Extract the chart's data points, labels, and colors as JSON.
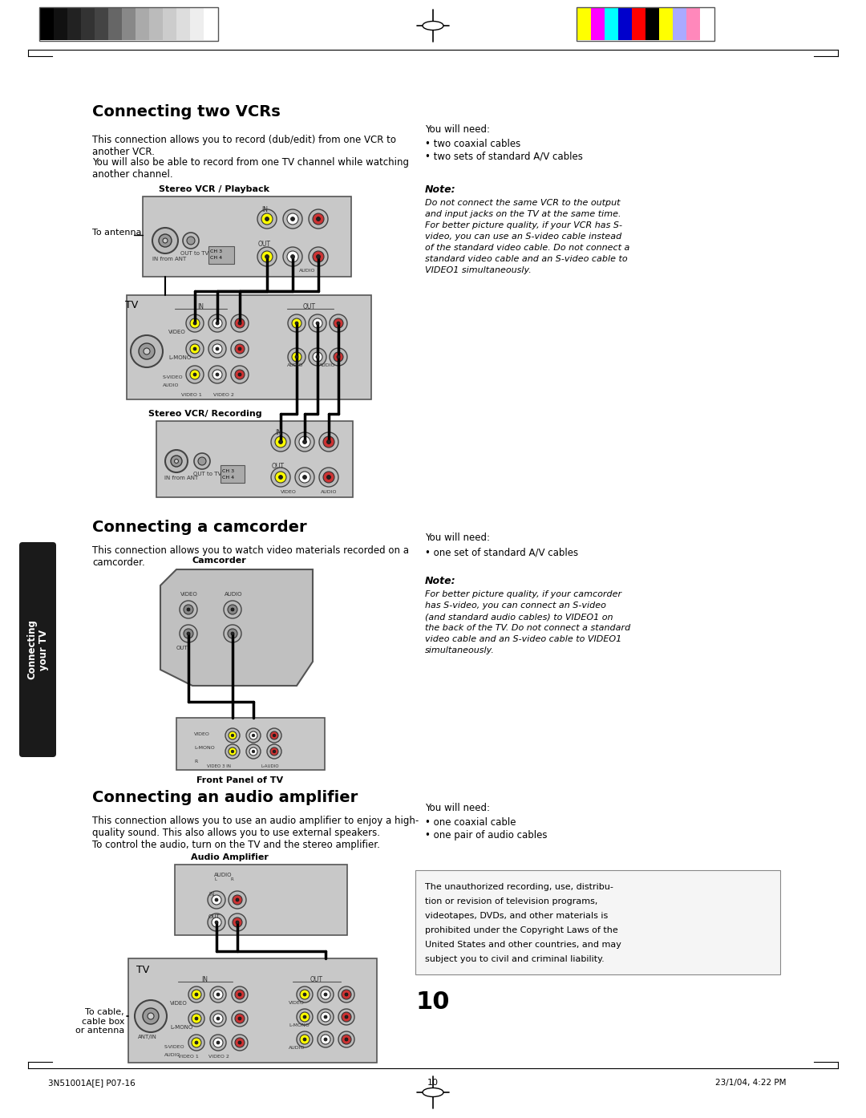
{
  "bg_color": "#ffffff",
  "footer_left": "3N51001A[E] P07-16",
  "footer_center": "10",
  "footer_right": "23/1/04, 4:22 PM",
  "section1_title": "Connecting two VCRs",
  "section1_body1": "This connection allows you to record (dub/edit) from one VCR to\nanother VCR.",
  "section1_body2": "You will also be able to record from one TV channel while watching\nanother channel.",
  "section1_need_title": "You will need:",
  "section1_need_items": [
    "two coaxial cables",
    "two sets of standard A/V cables"
  ],
  "section1_note_title": "Note:",
  "section1_note": "Do not connect the same VCR to the output and input jacks on the TV at the same time. For better picture quality, if your VCR has S-video, you can use an S-video cable instead of the standard video cable. Do not connect a standard video cable and an S-video cable to VIDEO1 simultaneously.",
  "section1_label_vcr1": "Stereo VCR / Playback",
  "section1_label_tv": "TV",
  "section1_label_vcr2": "Stereo VCR/ Recording",
  "section1_antenna": "To antenna",
  "section2_title": "Connecting a camcorder",
  "section2_body": "This connection allows you to watch video materials recorded on a\ncamcorder.",
  "section2_need_title": "You will need:",
  "section2_need_items": [
    "one set of standard A/V cables"
  ],
  "section2_note_title": "Note:",
  "section2_note": "For better picture quality, if your camcorder has S-video, you can connect an S-video (and standard audio cables) to VIDEO1 on the back of the TV. Do not connect a standard video cable and an S-video cable to VIDEO1 simultaneously.",
  "section2_label_cam": "Camcorder",
  "section2_label_tv": "Front Panel of TV",
  "section3_title": "Connecting an audio amplifier",
  "section3_body": "This connection allows you to use an audio amplifier to enjoy a high-\nquality sound. This also allows you to use external speakers.\nTo control the audio, turn on the TV and the stereo amplifier.",
  "section3_need_title": "You will need:",
  "section3_need_items": [
    "one coaxial cable",
    "one pair of audio cables"
  ],
  "section3_label_amp": "Audio Amplifier",
  "section3_label_tv": "TV",
  "section3_cable_label": "To cable,\ncable box\nor antenna",
  "section3_copyright": "The unauthorized recording, use, distribu-\ntion or revision of television programs,\nvideotapes, DVDs, and other materials is\nprohibited under the Copyright Laws of the\nUnited States and other countries, and may\nsubject you to civil and criminal liability.",
  "sidebar_text": "Connecting\nyour TV",
  "sidebar_bg": "#1a1a1a",
  "sidebar_text_color": "#ffffff",
  "gray_bars": [
    "#000000",
    "#111111",
    "#222222",
    "#333333",
    "#444444",
    "#666666",
    "#888888",
    "#aaaaaa",
    "#bbbbbb",
    "#cccccc",
    "#dddddd",
    "#eeeeee",
    "#ffffff"
  ],
  "color_bars": [
    "#ffff00",
    "#ff00ff",
    "#00ffff",
    "#0000cc",
    "#ff0000",
    "#000000",
    "#ffff00",
    "#aaaaff",
    "#ff88bb",
    "#ffffff"
  ]
}
